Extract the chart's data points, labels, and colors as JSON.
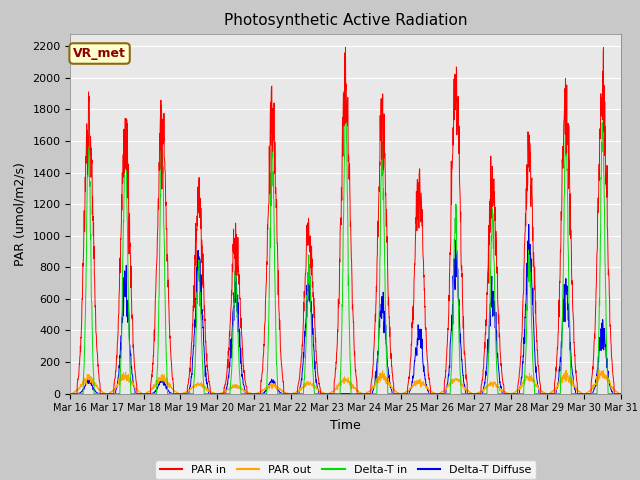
{
  "title": "Photosynthetic Active Radiation",
  "ylabel": "PAR (umol/m2/s)",
  "xlabel": "Time",
  "annotation": "VR_met",
  "ylim": [
    0,
    2280
  ],
  "yticks": [
    0,
    200,
    400,
    600,
    800,
    1000,
    1200,
    1400,
    1600,
    1800,
    2000,
    2200
  ],
  "date_labels": [
    "Mar 16",
    "Mar 17",
    "Mar 18",
    "Mar 19",
    "Mar 20",
    "Mar 21",
    "Mar 22",
    "Mar 23",
    "Mar 24",
    "Mar 25",
    "Mar 26",
    "Mar 27",
    "Mar 28",
    "Mar 29",
    "Mar 30",
    "Mar 31"
  ],
  "colors": {
    "PAR_in": "#ff0000",
    "PAR_out": "#ffa500",
    "Delta_T_in": "#00dd00",
    "Delta_T_Diffuse": "#0000ee"
  },
  "legend_labels": [
    "PAR in",
    "PAR out",
    "Delta-T in",
    "Delta-T Diffuse"
  ],
  "fig_background": "#c8c8c8",
  "axes_background": "#e8e8e8",
  "grid_color": "#ffffff",
  "title_fontsize": 11,
  "label_fontsize": 9,
  "tick_fontsize": 8,
  "annotation_facecolor": "#ffffcc",
  "annotation_edgecolor": "#8b6914",
  "annotation_textcolor": "#8b0000"
}
